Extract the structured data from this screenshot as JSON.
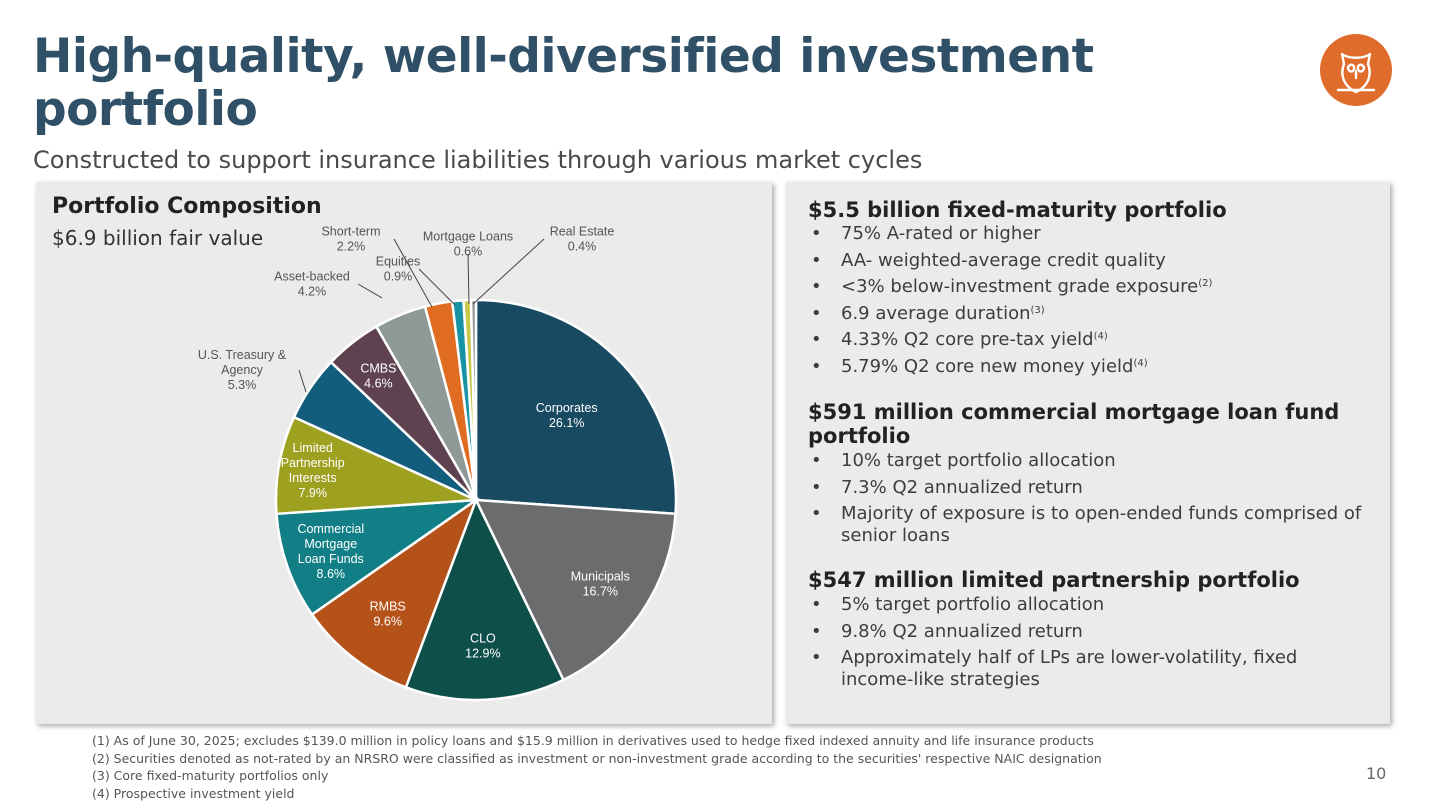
{
  "slide": {
    "title": "High-quality, well-diversified investment portfolio",
    "subtitle": "Constructed to support insurance liabilities through various market cycles",
    "page_number": "10",
    "logo_icon": "owl-logo-icon",
    "colors": {
      "accent": "#e06c2b",
      "title": "#2f5066",
      "panel": "#ebebeb"
    }
  },
  "left_panel": {
    "title": "Portfolio Composition",
    "subtitle": "$6.9 billion fair value"
  },
  "chart_data": {
    "type": "pie",
    "title": "Portfolio Composition",
    "subtitle": "$6.9 billion fair value",
    "start_angle_deg": 0,
    "direction": "clockwise",
    "slices": [
      {
        "label": "Corporates",
        "value": 26.1,
        "display": "26.1%",
        "color": "#184a62",
        "label_lines": [
          "Corporates"
        ]
      },
      {
        "label": "Municipals",
        "value": 16.7,
        "display": "16.7%",
        "color": "#6b6c6e",
        "label_lines": [
          "Municipals"
        ]
      },
      {
        "label": "CLO",
        "value": 12.9,
        "display": "12.9%",
        "color": "#0f4f4a",
        "label_lines": [
          "CLO"
        ]
      },
      {
        "label": "RMBS",
        "value": 9.6,
        "display": "9.6%",
        "color": "#b4521a",
        "label_lines": [
          "RMBS"
        ]
      },
      {
        "label": "Commercial Mortgage Loan Funds",
        "value": 8.6,
        "display": "8.6%",
        "color": "#127f86",
        "label_lines": [
          "Commercial",
          "Mortgage",
          "Loan Funds"
        ]
      },
      {
        "label": "Limited Partnership Interests",
        "value": 7.9,
        "display": "7.9%",
        "color": "#9ea020",
        "label_lines": [
          "Limited",
          "Partnership",
          "Interests"
        ]
      },
      {
        "label": "U.S. Treasury & Agency",
        "value": 5.3,
        "display": "5.3%",
        "color": "#125c7c",
        "label_lines": [
          "U.S. Treasury &",
          "Agency"
        ]
      },
      {
        "label": "CMBS",
        "value": 4.6,
        "display": "4.6%",
        "color": "#5f4250",
        "label_lines": [
          "CMBS"
        ]
      },
      {
        "label": "Asset-backed",
        "value": 4.2,
        "display": "4.2%",
        "color": "#8e9998",
        "label_lines": [
          "Asset-backed"
        ]
      },
      {
        "label": "Short-term",
        "value": 2.2,
        "display": "2.2%",
        "color": "#e06c22",
        "label_lines": [
          "Short-term"
        ]
      },
      {
        "label": "Equities",
        "value": 0.9,
        "display": "0.9%",
        "color": "#1893a3",
        "label_lines": [
          "Equities"
        ]
      },
      {
        "label": "Mortgage Loans",
        "value": 0.6,
        "display": "0.6%",
        "color": "#c9c74a",
        "label_lines": [
          "Mortgage Loans"
        ]
      },
      {
        "label": "Real Estate",
        "value": 0.4,
        "display": "0.4%",
        "color": "#949596",
        "label_lines": [
          "Real Estate"
        ]
      }
    ]
  },
  "right_panel": {
    "sections": [
      {
        "heading": "$5.5 billion fixed-maturity portfolio",
        "bullets": [
          {
            "text": "75% A-rated or higher",
            "sup": ""
          },
          {
            "text": "AA- weighted-average credit quality",
            "sup": ""
          },
          {
            "text": "<3% below-investment grade exposure",
            "sup": "(2)"
          },
          {
            "text": "6.9 average duration",
            "sup": "(3)"
          },
          {
            "text": "4.33% Q2 core pre-tax yield",
            "sup": "(4)"
          },
          {
            "text": "5.79% Q2 core new money yield",
            "sup": "(4)"
          }
        ]
      },
      {
        "heading": "$591 million commercial mortgage loan fund portfolio",
        "bullets": [
          {
            "text": "10% target portfolio allocation",
            "sup": ""
          },
          {
            "text": "7.3% Q2 annualized return",
            "sup": ""
          },
          {
            "text": "Majority of exposure is to open-ended funds comprised of senior loans",
            "sup": ""
          }
        ]
      },
      {
        "heading": "$547 million limited partnership portfolio",
        "bullets": [
          {
            "text": "5% target portfolio allocation",
            "sup": ""
          },
          {
            "text": "9.8% Q2 annualized return",
            "sup": ""
          },
          {
            "text": "Approximately half of LPs are lower-volatility, fixed income-like strategies",
            "sup": ""
          }
        ]
      }
    ]
  },
  "footnotes": [
    "(1)  As of June 30, 2025; excludes $139.0 million in policy loans and $15.9 million in derivatives used to hedge fixed indexed annuity and life insurance products",
    "(2)  Securities denoted as not-rated by an NRSRO were classified as investment or non-investment grade according to the securities' respective NAIC designation",
    "(3)  Core fixed-maturity portfolios only",
    "(4)  Prospective investment yield"
  ]
}
